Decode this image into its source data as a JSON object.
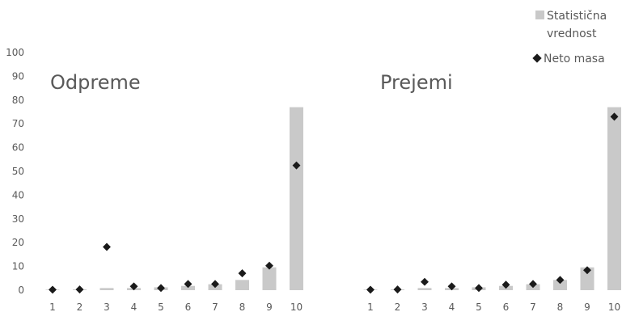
{
  "chart_data": {
    "type": "bar",
    "categories": [
      "1",
      "2",
      "3",
      "4",
      "5",
      "6",
      "7",
      "8",
      "9",
      "10"
    ],
    "ylim": [
      0,
      100
    ],
    "y_ticks": [
      0,
      10,
      20,
      30,
      40,
      50,
      60,
      70,
      80,
      90,
      100
    ],
    "legend": {
      "placement": "top-right",
      "items": [
        {
          "label_lines": [
            "Statistična",
            "vrednost"
          ],
          "marker": "square",
          "color": "#c9c9c9"
        },
        {
          "label_lines": [
            "Neto masa"
          ],
          "marker": "diamond",
          "color": "#1a1a1a"
        }
      ]
    },
    "panels": [
      {
        "title": "Odpreme",
        "series": [
          {
            "name": "Statistična vrednost",
            "kind": "bar",
            "color": "#c9c9c9",
            "values": [
              0.2,
              0.3,
              0.9,
              0.9,
              1.2,
              1.8,
              2.5,
              4.3,
              9.6,
              77
            ]
          },
          {
            "name": "Neto masa",
            "kind": "marker",
            "color": "#1a1a1a",
            "values": [
              0.2,
              0.3,
              18.2,
              1.6,
              0.9,
              2.6,
              2.6,
              7.1,
              10.3,
              52.5
            ]
          }
        ]
      },
      {
        "title": "Prejemi",
        "series": [
          {
            "name": "Statistična vrednost",
            "kind": "bar",
            "color": "#c9c9c9",
            "values": [
              0.2,
              0.3,
              0.9,
              0.9,
              1.2,
              1.8,
              2.5,
              4.3,
              9.6,
              77
            ]
          },
          {
            "name": "Neto masa",
            "kind": "marker",
            "color": "#1a1a1a",
            "values": [
              0.2,
              0.3,
              3.5,
              1.6,
              0.9,
              2.3,
              2.6,
              4.3,
              8.4,
              73
            ]
          }
        ]
      }
    ]
  }
}
